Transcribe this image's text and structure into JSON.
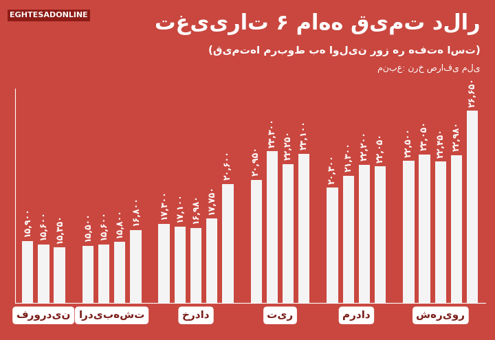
{
  "chart_data": {
    "type": "bar",
    "title": "تغییرات ۶ ماهه قیمت دلار",
    "subtitle": "(قیمت‌ها مربوط به اولین روز هر هفته است)",
    "source": "منبع: نرخ صرافی ملی",
    "brand": "EGHTESADONLINE",
    "groups": [
      {
        "name": "فروردین",
        "values": [
          15900,
          15600,
          15350
        ],
        "value_labels": [
          "۱۵,۹۰۰",
          "۱۵,۶۰۰",
          "۱۵,۳۵۰"
        ]
      },
      {
        "name": "اردیبهشت",
        "values": [
          15500,
          15600,
          15800,
          16800
        ],
        "value_labels": [
          "۱۵,۵۰۰",
          "۱۵,۶۰۰",
          "۱۵,۸۰۰",
          "۱۶,۸۰۰"
        ]
      },
      {
        "name": "خرداد",
        "values": [
          17300,
          17100,
          16980,
          17750,
          20600
        ],
        "value_labels": [
          "۱۷,۳۰۰",
          "۱۷,۱۰۰",
          "۱۶,۹۸۰",
          "۱۷,۷۵۰",
          "۲۰,۶۰۰"
        ]
      },
      {
        "name": "تیر",
        "values": [
          20950,
          23300,
          22250,
          23100
        ],
        "value_labels": [
          "۲۰,۹۵۰",
          "۲۳,۳۰۰",
          "۲۲,۲۵۰",
          "۲۳,۱۰۰"
        ]
      },
      {
        "name": "مرداد",
        "values": [
          20300,
          21300,
          22200,
          22050
        ],
        "value_labels": [
          "۲۰,۳۰۰",
          "۲۱,۳۰۰",
          "۲۲,۲۰۰",
          "۲۲,۰۵۰"
        ]
      },
      {
        "name": "شهریور",
        "values": [
          22500,
          23050,
          22450,
          22980,
          26650
        ],
        "value_labels": [
          "۲۲,۵۰۰",
          "۲۳,۰۵۰",
          "۲۲,۴۵۰",
          "۲۲,۹۸۰",
          "۲۶,۶۵۰"
        ]
      }
    ],
    "color": "#f4f4f4",
    "ylim": [
      10800,
      28500
    ],
    "data_labels": true,
    "tick_labels": "x",
    "grid": false
  }
}
